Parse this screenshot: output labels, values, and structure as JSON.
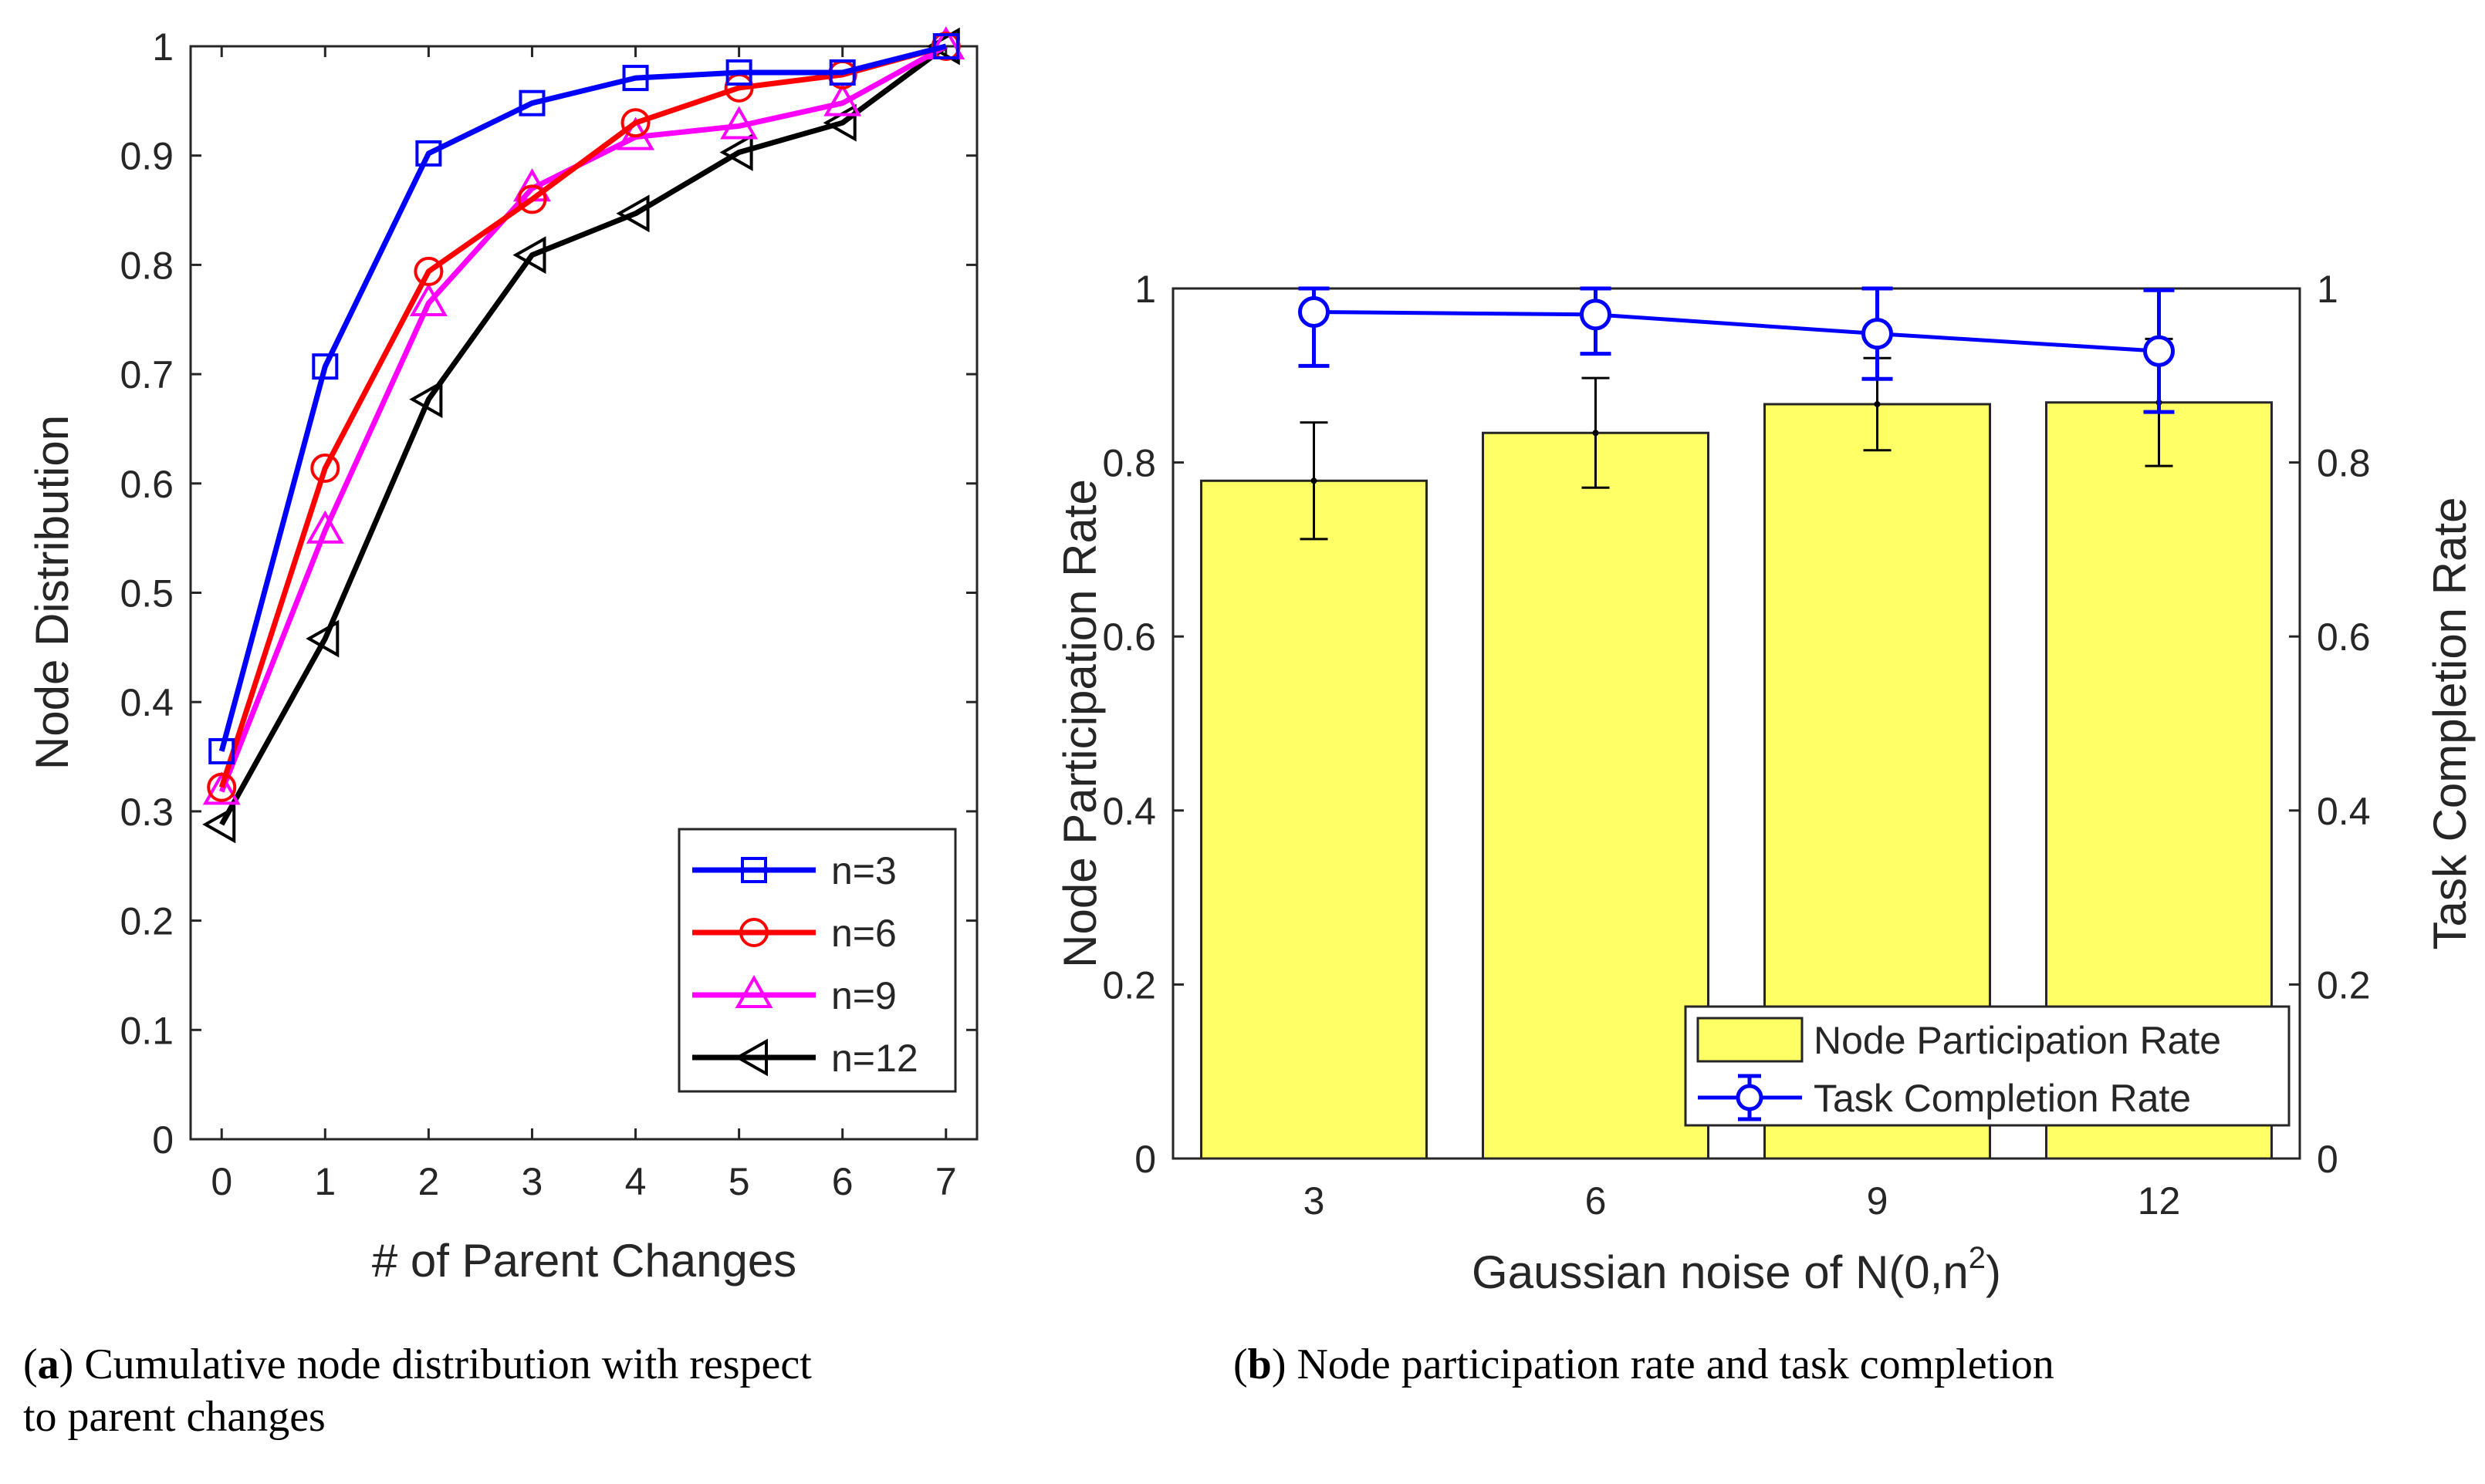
{
  "chart_data": [
    {
      "type": "line",
      "xlabel": "# of Parent Changes",
      "ylabel": "Node Distribution",
      "xlim": [
        -0.3,
        7.3
      ],
      "ylim": [
        0,
        1
      ],
      "xticks": [
        "0",
        "1",
        "2",
        "3",
        "4",
        "5",
        "6",
        "7"
      ],
      "yticks": [
        "0",
        "0.1",
        "0.2",
        "0.3",
        "0.4",
        "0.5",
        "0.6",
        "0.7",
        "0.8",
        "0.9",
        "1"
      ],
      "x": [
        0,
        1,
        2,
        3,
        4,
        5,
        6,
        7
      ],
      "legend_position": "bottom-right",
      "series": [
        {
          "name": "n=3",
          "color": "#0000ff",
          "marker": "square",
          "values": [
            0.355,
            0.707,
            0.902,
            0.948,
            0.971,
            0.976,
            0.976,
            1.0
          ]
        },
        {
          "name": "n=6",
          "color": "#ff0000",
          "marker": "circle",
          "values": [
            0.322,
            0.614,
            0.794,
            0.86,
            0.93,
            0.962,
            0.974,
            1.0
          ]
        },
        {
          "name": "n=9",
          "color": "#ff00ff",
          "marker": "triangle-up",
          "values": [
            0.318,
            0.557,
            0.765,
            0.87,
            0.917,
            0.927,
            0.948,
            1.0
          ]
        },
        {
          "name": "n=12",
          "color": "#000000",
          "marker": "triangle-left",
          "values": [
            0.288,
            0.458,
            0.677,
            0.809,
            0.847,
            0.903,
            0.93,
            1.0
          ]
        }
      ],
      "caption": {
        "label": "a",
        "text": " Cumulative node distribution with respect",
        "text2": "to parent changes"
      }
    },
    {
      "type": "bar",
      "xlabel": "Gaussian noise of N(0,n",
      "xlabel_sup": "2",
      "xlabel_end": ")",
      "ylabel": "Node Participation Rate",
      "ylabel_right": "Task Completion Rate",
      "categories": [
        "3",
        "6",
        "9",
        "12"
      ],
      "ylim": [
        0,
        1
      ],
      "yticks": [
        "0",
        "0.2",
        "0.4",
        "0.6",
        "0.8",
        "1"
      ],
      "bar_color": "#ffff66",
      "line_color": "#0000ff",
      "series": [
        {
          "name": "Node Participation Rate",
          "values": [
            0.779,
            0.834,
            0.867,
            0.869
          ],
          "error": [
            0.067,
            0.063,
            0.053,
            0.073
          ]
        },
        {
          "name": "Task Completion Rate",
          "values": [
            0.973,
            0.97,
            0.948,
            0.928
          ],
          "error": [
            0.062,
            0.045,
            0.052,
            0.07
          ]
        }
      ],
      "legend_position": "bottom-right",
      "caption": {
        "label": "b",
        "text": " Node participation rate and task completion"
      }
    }
  ]
}
